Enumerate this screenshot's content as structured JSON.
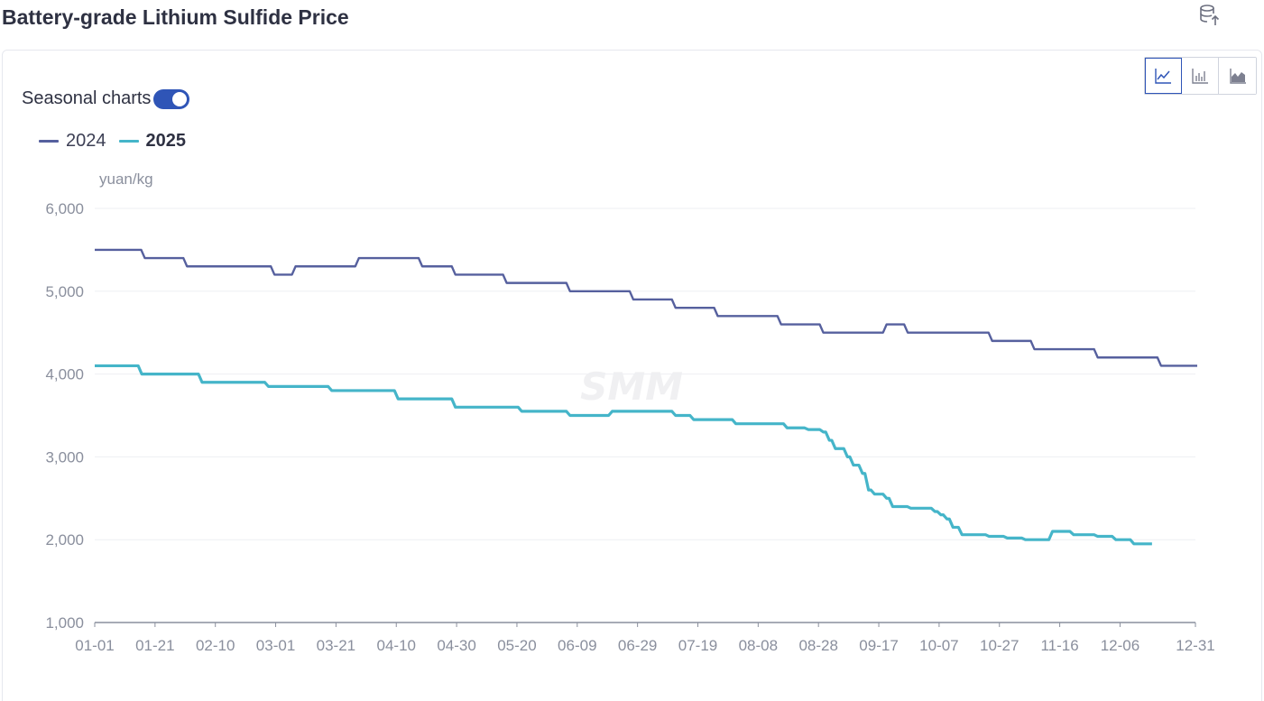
{
  "header": {
    "title": "Battery-grade Lithium Sulfide Price",
    "export_icon": "database-export-icon"
  },
  "controls": {
    "seasonal_label": "Seasonal charts",
    "seasonal_on": true,
    "chart_types": [
      {
        "name": "line-chart-icon",
        "active": true
      },
      {
        "name": "bar-chart-icon",
        "active": false
      },
      {
        "name": "area-chart-icon",
        "active": false
      }
    ]
  },
  "colors": {
    "accent": "#2f55b7",
    "series_2024": "#56609e",
    "series_2025": "#45b5c9",
    "grid": "#eeeff3",
    "axis": "#8a8f9d"
  },
  "watermark": "SMM",
  "chart_data": {
    "type": "line",
    "unit": "yuan/kg",
    "ylim": [
      1000,
      6000
    ],
    "yticks": [
      "1,000",
      "2,000",
      "3,000",
      "4,000",
      "5,000",
      "6,000"
    ],
    "ytick_values": [
      1000,
      2000,
      3000,
      4000,
      5000,
      6000
    ],
    "xticks": [
      "01-01",
      "01-21",
      "02-10",
      "03-01",
      "03-21",
      "04-10",
      "04-30",
      "05-20",
      "06-09",
      "06-29",
      "07-19",
      "08-08",
      "08-28",
      "09-17",
      "10-07",
      "10-27",
      "11-16",
      "12-06",
      "12-31"
    ],
    "xtick_days": [
      0,
      20,
      40,
      60,
      80,
      100,
      120,
      140,
      160,
      180,
      200,
      220,
      240,
      260,
      280,
      300,
      320,
      340,
      365
    ],
    "x_days_total": 365,
    "grid": true,
    "legend_position": "top-left",
    "series": [
      {
        "name": "2024",
        "color": "#56609e",
        "steps": [
          [
            0,
            5500
          ],
          [
            16,
            5400
          ],
          [
            30,
            5300
          ],
          [
            59,
            5200
          ],
          [
            66,
            5300
          ],
          [
            87,
            5400
          ],
          [
            108,
            5300
          ],
          [
            119,
            5200
          ],
          [
            136,
            5100
          ],
          [
            157,
            5000
          ],
          [
            178,
            4900
          ],
          [
            192,
            4800
          ],
          [
            206,
            4700
          ],
          [
            227,
            4600
          ],
          [
            241,
            4500
          ],
          [
            262,
            4600
          ],
          [
            269,
            4500
          ],
          [
            297,
            4400
          ],
          [
            311,
            4300
          ],
          [
            332,
            4200
          ],
          [
            353,
            4100
          ],
          [
            365,
            4100
          ]
        ]
      },
      {
        "name": "2025",
        "color": "#45b5c9",
        "steps": [
          [
            0,
            4100
          ],
          [
            15,
            4000
          ],
          [
            35,
            3900
          ],
          [
            57,
            3850
          ],
          [
            78,
            3800
          ],
          [
            100,
            3700
          ],
          [
            119,
            3600
          ],
          [
            141,
            3550
          ],
          [
            157,
            3500
          ],
          [
            171,
            3550
          ],
          [
            192,
            3500
          ],
          [
            198,
            3450
          ],
          [
            212,
            3400
          ],
          [
            229,
            3350
          ],
          [
            236,
            3330
          ],
          [
            241,
            3300
          ],
          [
            243,
            3200
          ],
          [
            245,
            3100
          ],
          [
            249,
            3000
          ],
          [
            251,
            2900
          ],
          [
            254,
            2800
          ],
          [
            256,
            2600
          ],
          [
            258,
            2550
          ],
          [
            262,
            2500
          ],
          [
            264,
            2400
          ],
          [
            270,
            2380
          ],
          [
            278,
            2340
          ],
          [
            280,
            2300
          ],
          [
            282,
            2250
          ],
          [
            284,
            2150
          ],
          [
            287,
            2060
          ],
          [
            296,
            2040
          ],
          [
            302,
            2020
          ],
          [
            308,
            2000
          ],
          [
            317,
            2100
          ],
          [
            324,
            2060
          ],
          [
            332,
            2040
          ],
          [
            338,
            2000
          ],
          [
            344,
            1950
          ],
          [
            350,
            1950
          ]
        ]
      }
    ]
  }
}
